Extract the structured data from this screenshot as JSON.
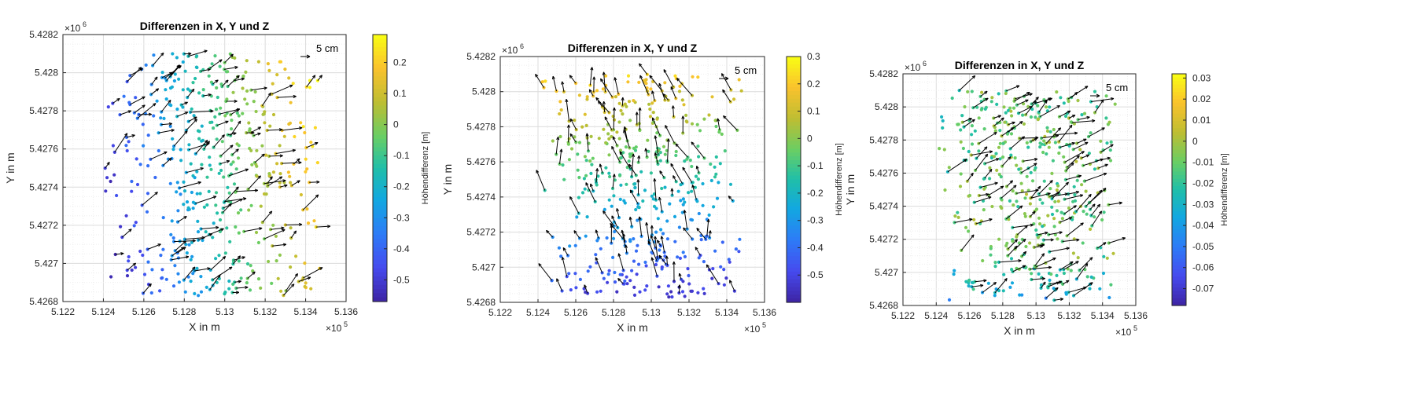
{
  "chart_data": [
    {
      "type": "scatter",
      "title": "Differenzen in X, Y und Z",
      "xlabel": "X in m",
      "ylabel": "Y in m",
      "x_exponent": "×10",
      "x_exponent_power": "5",
      "y_exponent": "×10",
      "y_exponent_power": "6",
      "xlim": [
        5.122,
        5.136
      ],
      "ylim": [
        5.4268,
        5.4282
      ],
      "xticks": [
        "5.122",
        "5.124",
        "5.126",
        "5.128",
        "5.13",
        "5.132",
        "5.134",
        "5.136"
      ],
      "yticks": [
        "5.4268",
        "5.427",
        "5.4272",
        "5.4274",
        "5.4276",
        "5.4278",
        "5.428",
        "5.4282"
      ],
      "grid": true,
      "scale_label": "5 cm",
      "colorbar": {
        "label": "Höhendifferenz [m]",
        "min": -0.57,
        "max": 0.29,
        "ticks": [
          "0.2",
          "0.1",
          "0",
          "-0.1",
          "-0.2",
          "-0.3",
          "-0.4",
          "-0.5"
        ],
        "tick_values": [
          0.2,
          0.1,
          0,
          -0.1,
          -0.2,
          -0.3,
          -0.4,
          -0.5
        ]
      },
      "seed": 11,
      "value_model": "right_high"
    },
    {
      "type": "scatter",
      "title": "Differenzen in X, Y und Z",
      "xlabel": "X in m",
      "ylabel": "Y in m",
      "x_exponent": "×10",
      "x_exponent_power": "5",
      "y_exponent": "×10",
      "y_exponent_power": "6",
      "xlim": [
        5.122,
        5.136
      ],
      "ylim": [
        5.4268,
        5.4282
      ],
      "xticks": [
        "5.122",
        "5.124",
        "5.126",
        "5.128",
        "5.13",
        "5.132",
        "5.134",
        "5.136"
      ],
      "yticks": [
        "5.4268",
        "5.427",
        "5.4272",
        "5.4274",
        "5.4276",
        "5.4278",
        "5.428",
        "5.4282"
      ],
      "grid": true,
      "scale_label": "5 cm",
      "colorbar": {
        "label": "Höhendifferenz [m]",
        "min": -0.6,
        "max": 0.3,
        "ticks": [
          "0.3",
          "0.2",
          "0.1",
          "0",
          "-0.1",
          "-0.2",
          "-0.3",
          "-0.4",
          "-0.5"
        ],
        "tick_values": [
          0.3,
          0.2,
          0.1,
          0,
          -0.1,
          -0.2,
          -0.3,
          -0.4,
          -0.5
        ]
      },
      "seed": 23,
      "value_model": "top_high"
    },
    {
      "type": "scatter",
      "title": "Differenzen in X, Y und Z",
      "xlabel": "X in m",
      "ylabel": "Y in m",
      "x_exponent": "×10",
      "x_exponent_power": "5",
      "y_exponent": "×10",
      "y_exponent_power": "6",
      "xlim": [
        5.122,
        5.136
      ],
      "ylim": [
        5.4268,
        5.4282
      ],
      "xticks": [
        "5.122",
        "5.124",
        "5.126",
        "5.128",
        "5.13",
        "5.132",
        "5.134",
        "5.136"
      ],
      "yticks": [
        "5.4268",
        "5.427",
        "5.4272",
        "5.4274",
        "5.4276",
        "5.4278",
        "5.428",
        "5.4282"
      ],
      "grid": true,
      "scale_label": "5 cm",
      "colorbar": {
        "label": "Höhendifferenz [m]",
        "min": -0.078,
        "max": 0.032,
        "ticks": [
          "0.03",
          "0.02",
          "0.01",
          "0",
          "-0.01",
          "-0.02",
          "-0.03",
          "-0.04",
          "-0.05",
          "-0.06",
          "-0.07"
        ],
        "tick_values": [
          0.03,
          0.02,
          0.01,
          0,
          -0.01,
          -0.02,
          -0.03,
          -0.04,
          -0.05,
          -0.06,
          -0.07
        ]
      },
      "seed": 37,
      "value_model": "mixed"
    }
  ]
}
